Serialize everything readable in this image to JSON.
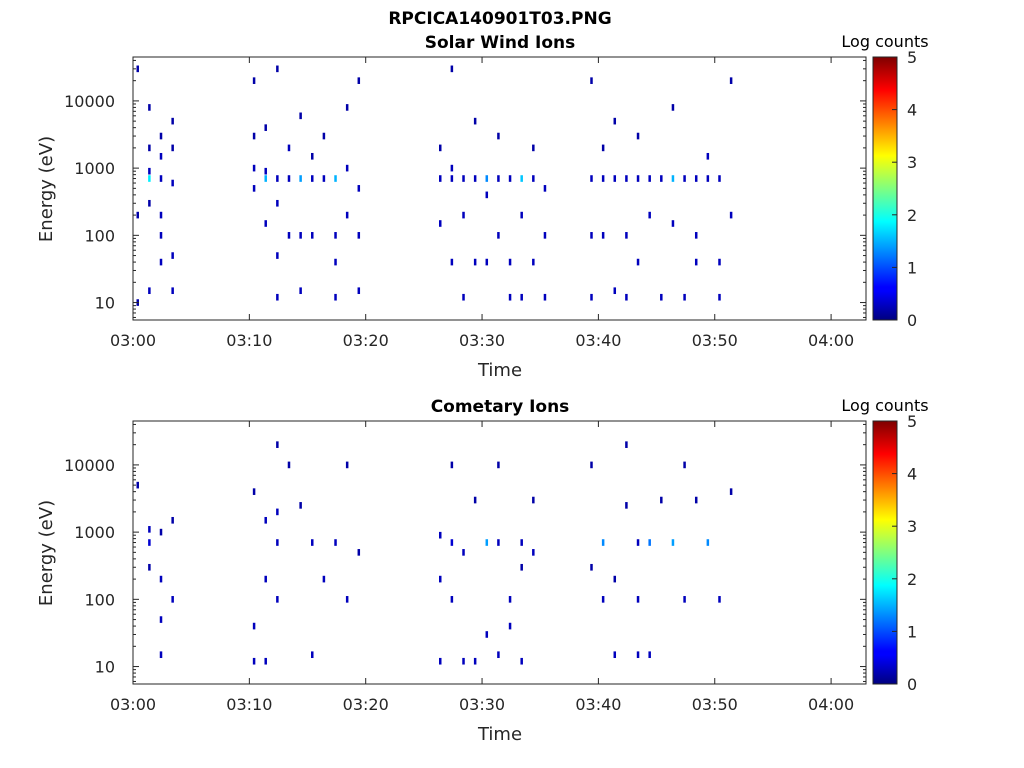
{
  "figure_title": "RPCICA140901T03.PNG",
  "chart_data": [
    {
      "type": "heatmap",
      "title": "Solar Wind Ions",
      "xlabel": "Time",
      "ylabel": "Energy (eV)",
      "y_scale": "log",
      "xlim": [
        "03:00",
        "04:03"
      ],
      "ylim": [
        5.5,
        45000
      ],
      "x_ticks": [
        "03:00",
        "03:10",
        "03:20",
        "03:30",
        "03:40",
        "03:50",
        "04:00"
      ],
      "y_ticks": [
        "10",
        "100",
        "1000",
        "10000"
      ],
      "colorbar": {
        "label": "Log counts",
        "range": [
          0,
          5
        ],
        "ticks": [
          "0",
          "1",
          "2",
          "3",
          "4",
          "5"
        ],
        "colormap": "jet"
      },
      "active_intervals": [
        [
          "03:00",
          "03:03"
        ],
        [
          "03:09",
          "03:19"
        ],
        [
          "03:26",
          "03:35"
        ],
        [
          "03:39",
          "03:51"
        ]
      ],
      "cells": [
        [
          "03:00",
          10,
          0.2
        ],
        [
          "03:00",
          200,
          0.2
        ],
        [
          "03:00",
          30000,
          0.2
        ],
        [
          "03:01",
          15,
          0.3
        ],
        [
          "03:01",
          700,
          1.8
        ],
        [
          "03:01",
          900,
          0.3
        ],
        [
          "03:01",
          300,
          0.2
        ],
        [
          "03:01",
          2000,
          0.2
        ],
        [
          "03:01",
          8000,
          0.2
        ],
        [
          "03:02",
          40,
          0.3
        ],
        [
          "03:02",
          100,
          0.3
        ],
        [
          "03:02",
          700,
          0.3
        ],
        [
          "03:02",
          1500,
          0.3
        ],
        [
          "03:02",
          3000,
          0.2
        ],
        [
          "03:02",
          200,
          0.3
        ],
        [
          "03:03",
          15,
          0.3
        ],
        [
          "03:03",
          50,
          0.3
        ],
        [
          "03:03",
          600,
          0.3
        ],
        [
          "03:03",
          2000,
          0.2
        ],
        [
          "03:03",
          5000,
          0.2
        ],
        [
          "03:10",
          500,
          0.3
        ],
        [
          "03:10",
          1000,
          0.3
        ],
        [
          "03:10",
          3000,
          0.2
        ],
        [
          "03:10",
          20000,
          0.2
        ],
        [
          "03:11",
          700,
          1.5
        ],
        [
          "03:11",
          900,
          0.3
        ],
        [
          "03:11",
          150,
          0.3
        ],
        [
          "03:11",
          4000,
          0.2
        ],
        [
          "03:12",
          12,
          0.3
        ],
        [
          "03:12",
          50,
          0.3
        ],
        [
          "03:12",
          700,
          0.3
        ],
        [
          "03:12",
          300,
          0.3
        ],
        [
          "03:12",
          30000,
          0.2
        ],
        [
          "03:13",
          100,
          0.3
        ],
        [
          "03:13",
          700,
          0.3
        ],
        [
          "03:13",
          2000,
          0.3
        ],
        [
          "03:14",
          100,
          0.3
        ],
        [
          "03:14",
          700,
          1.4
        ],
        [
          "03:14",
          15,
          0.3
        ],
        [
          "03:14",
          6000,
          0.2
        ],
        [
          "03:15",
          700,
          0.3
        ],
        [
          "03:15",
          1500,
          0.2
        ],
        [
          "03:15",
          100,
          0.3
        ],
        [
          "03:16",
          700,
          0.3
        ],
        [
          "03:16",
          3000,
          0.2
        ],
        [
          "03:17",
          700,
          1.5
        ],
        [
          "03:17",
          100,
          0.3
        ],
        [
          "03:17",
          40,
          0.3
        ],
        [
          "03:17",
          12,
          0.3
        ],
        [
          "03:18",
          200,
          0.3
        ],
        [
          "03:18",
          1000,
          0.3
        ],
        [
          "03:18",
          8000,
          0.2
        ],
        [
          "03:19",
          15,
          0.3
        ],
        [
          "03:19",
          100,
          0.3
        ],
        [
          "03:19",
          500,
          0.3
        ],
        [
          "03:19",
          20000,
          0.2
        ],
        [
          "03:26",
          150,
          0.3
        ],
        [
          "03:26",
          700,
          0.3
        ],
        [
          "03:26",
          2000,
          0.2
        ],
        [
          "03:27",
          40,
          0.3
        ],
        [
          "03:27",
          700,
          0.3
        ],
        [
          "03:27",
          1000,
          0.3
        ],
        [
          "03:27",
          30000,
          0.2
        ],
        [
          "03:28",
          200,
          0.3
        ],
        [
          "03:28",
          700,
          0.3
        ],
        [
          "03:28",
          12,
          0.3
        ],
        [
          "03:29",
          700,
          0.3
        ],
        [
          "03:29",
          40,
          0.3
        ],
        [
          "03:29",
          5000,
          0.2
        ],
        [
          "03:30",
          700,
          1.3
        ],
        [
          "03:30",
          400,
          0.3
        ],
        [
          "03:30",
          40,
          0.3
        ],
        [
          "03:31",
          100,
          0.3
        ],
        [
          "03:31",
          700,
          0.3
        ],
        [
          "03:31",
          3000,
          0.2
        ],
        [
          "03:32",
          700,
          0.3
        ],
        [
          "03:32",
          12,
          0.3
        ],
        [
          "03:32",
          40,
          0.3
        ],
        [
          "03:33",
          700,
          1.6
        ],
        [
          "03:33",
          200,
          0.3
        ],
        [
          "03:33",
          12,
          0.3
        ],
        [
          "03:34",
          700,
          0.3
        ],
        [
          "03:34",
          40,
          0.3
        ],
        [
          "03:34",
          2000,
          0.2
        ],
        [
          "03:35",
          100,
          0.3
        ],
        [
          "03:35",
          12,
          0.3
        ],
        [
          "03:35",
          500,
          0.3
        ],
        [
          "03:39",
          100,
          0.3
        ],
        [
          "03:39",
          700,
          0.3
        ],
        [
          "03:39",
          12,
          0.3
        ],
        [
          "03:39",
          20000,
          0.2
        ],
        [
          "03:40",
          700,
          0.3
        ],
        [
          "03:40",
          100,
          0.3
        ],
        [
          "03:40",
          2000,
          0.2
        ],
        [
          "03:41",
          15,
          0.3
        ],
        [
          "03:41",
          700,
          0.3
        ],
        [
          "03:41",
          5000,
          0.2
        ],
        [
          "03:42",
          12,
          0.3
        ],
        [
          "03:42",
          100,
          0.3
        ],
        [
          "03:42",
          700,
          0.3
        ],
        [
          "03:43",
          40,
          0.3
        ],
        [
          "03:43",
          700,
          0.3
        ],
        [
          "03:43",
          3000,
          0.2
        ],
        [
          "03:44",
          700,
          0.3
        ],
        [
          "03:44",
          200,
          0.3
        ],
        [
          "03:45",
          700,
          0.3
        ],
        [
          "03:45",
          12,
          0.3
        ],
        [
          "03:46",
          700,
          1.5
        ],
        [
          "03:46",
          150,
          0.3
        ],
        [
          "03:46",
          8000,
          0.2
        ],
        [
          "03:47",
          12,
          0.3
        ],
        [
          "03:47",
          700,
          0.3
        ],
        [
          "03:48",
          40,
          0.3
        ],
        [
          "03:48",
          700,
          0.3
        ],
        [
          "03:48",
          100,
          0.3
        ],
        [
          "03:49",
          700,
          0.3
        ],
        [
          "03:49",
          1500,
          0.3
        ],
        [
          "03:50",
          12,
          0.3
        ],
        [
          "03:50",
          700,
          0.3
        ],
        [
          "03:50",
          40,
          0.3
        ],
        [
          "03:51",
          200,
          0.3
        ],
        [
          "03:51",
          20000,
          0.2
        ]
      ]
    },
    {
      "type": "heatmap",
      "title": "Cometary Ions",
      "xlabel": "Time",
      "ylabel": "Energy (eV)",
      "y_scale": "log",
      "xlim": [
        "03:00",
        "04:03"
      ],
      "ylim": [
        5.5,
        45000
      ],
      "x_ticks": [
        "03:00",
        "03:10",
        "03:20",
        "03:30",
        "03:40",
        "03:50",
        "04:00"
      ],
      "y_ticks": [
        "10",
        "100",
        "1000",
        "10000"
      ],
      "colorbar": {
        "label": "Log counts",
        "range": [
          0,
          5
        ],
        "ticks": [
          "0",
          "1",
          "2",
          "3",
          "4",
          "5"
        ],
        "colormap": "jet"
      },
      "cells": [
        [
          "03:00",
          5000,
          0.2
        ],
        [
          "03:01",
          300,
          0.2
        ],
        [
          "03:01",
          700,
          0.4
        ],
        [
          "03:01",
          1100,
          0.3
        ],
        [
          "03:02",
          15,
          0.3
        ],
        [
          "03:02",
          50,
          0.3
        ],
        [
          "03:02",
          200,
          0.3
        ],
        [
          "03:02",
          1000,
          0.2
        ],
        [
          "03:03",
          100,
          0.3
        ],
        [
          "03:03",
          1500,
          0.2
        ],
        [
          "03:10",
          12,
          0.3
        ],
        [
          "03:10",
          40,
          0.3
        ],
        [
          "03:10",
          4000,
          0.2
        ],
        [
          "03:11",
          1500,
          0.3
        ],
        [
          "03:11",
          12,
          0.3
        ],
        [
          "03:11",
          200,
          0.3
        ],
        [
          "03:12",
          100,
          0.3
        ],
        [
          "03:12",
          700,
          0.3
        ],
        [
          "03:12",
          2000,
          0.3
        ],
        [
          "03:12",
          20000,
          0.2
        ],
        [
          "03:13",
          10000,
          0.2
        ],
        [
          "03:14",
          2500,
          0.2
        ],
        [
          "03:15",
          700,
          0.3
        ],
        [
          "03:15",
          15,
          0.3
        ],
        [
          "03:16",
          200,
          0.3
        ],
        [
          "03:17",
          700,
          0.3
        ],
        [
          "03:18",
          100,
          0.3
        ],
        [
          "03:18",
          10000,
          0.2
        ],
        [
          "03:19",
          500,
          0.2
        ],
        [
          "03:26",
          12,
          0.3
        ],
        [
          "03:26",
          200,
          0.3
        ],
        [
          "03:26",
          900,
          0.3
        ],
        [
          "03:27",
          700,
          0.4
        ],
        [
          "03:27",
          100,
          0.3
        ],
        [
          "03:27",
          10000,
          0.2
        ],
        [
          "03:28",
          12,
          0.3
        ],
        [
          "03:28",
          500,
          0.3
        ],
        [
          "03:29",
          12,
          0.3
        ],
        [
          "03:29",
          3000,
          0.2
        ],
        [
          "03:30",
          700,
          1.4
        ],
        [
          "03:30",
          30,
          0.3
        ],
        [
          "03:31",
          700,
          0.3
        ],
        [
          "03:31",
          15,
          0.3
        ],
        [
          "03:31",
          10000,
          0.2
        ],
        [
          "03:32",
          100,
          0.3
        ],
        [
          "03:32",
          40,
          0.3
        ],
        [
          "03:33",
          700,
          0.3
        ],
        [
          "03:33",
          12,
          0.3
        ],
        [
          "03:33",
          300,
          0.2
        ],
        [
          "03:34",
          500,
          0.3
        ],
        [
          "03:34",
          3000,
          0.2
        ],
        [
          "03:39",
          300,
          0.2
        ],
        [
          "03:39",
          10000,
          0.2
        ],
        [
          "03:40",
          700,
          1.3
        ],
        [
          "03:40",
          100,
          0.3
        ],
        [
          "03:41",
          15,
          0.3
        ],
        [
          "03:41",
          200,
          0.2
        ],
        [
          "03:42",
          20000,
          0.2
        ],
        [
          "03:42",
          2500,
          0.2
        ],
        [
          "03:43",
          700,
          0.3
        ],
        [
          "03:43",
          15,
          0.3
        ],
        [
          "03:43",
          100,
          0.3
        ],
        [
          "03:44",
          700,
          1.2
        ],
        [
          "03:44",
          15,
          0.3
        ],
        [
          "03:45",
          3000,
          0.2
        ],
        [
          "03:46",
          700,
          1.4
        ],
        [
          "03:47",
          10000,
          0.2
        ],
        [
          "03:47",
          100,
          0.3
        ],
        [
          "03:48",
          3000,
          0.2
        ],
        [
          "03:49",
          700,
          1.3
        ],
        [
          "03:50",
          100,
          0.3
        ],
        [
          "03:51",
          4000,
          0.2
        ]
      ]
    }
  ]
}
